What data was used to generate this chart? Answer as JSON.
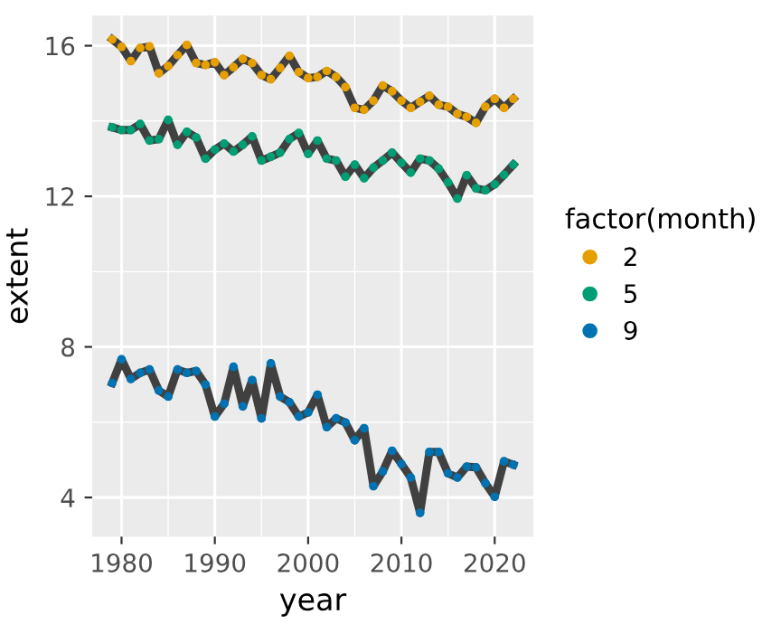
{
  "chart_data": {
    "type": "line",
    "xlabel": "year",
    "ylabel": "extent",
    "legend_title": "factor(month)",
    "x": [
      1979,
      1980,
      1981,
      1982,
      1983,
      1984,
      1985,
      1986,
      1987,
      1988,
      1989,
      1990,
      1991,
      1992,
      1993,
      1994,
      1995,
      1996,
      1997,
      1998,
      1999,
      2000,
      2001,
      2002,
      2003,
      2004,
      2005,
      2006,
      2007,
      2008,
      2009,
      2010,
      2011,
      2012,
      2013,
      2014,
      2015,
      2016,
      2017,
      2018,
      2019,
      2020,
      2021,
      2022
    ],
    "series": [
      {
        "name": "2",
        "color": "#e69f00",
        "values": [
          16.17,
          15.97,
          15.59,
          15.94,
          15.98,
          15.27,
          15.46,
          15.75,
          16.02,
          15.54,
          15.49,
          15.56,
          15.22,
          15.43,
          15.65,
          15.54,
          15.22,
          15.11,
          15.41,
          15.73,
          15.3,
          15.14,
          15.17,
          15.33,
          15.17,
          14.9,
          14.35,
          14.3,
          14.54,
          14.94,
          14.79,
          14.54,
          14.35,
          14.51,
          14.67,
          14.43,
          14.38,
          14.19,
          14.11,
          13.95,
          14.38,
          14.59,
          14.35,
          14.59
        ]
      },
      {
        "name": "5",
        "color": "#009e73",
        "values": [
          13.83,
          13.76,
          13.76,
          13.92,
          13.48,
          13.52,
          14.03,
          13.37,
          13.71,
          13.56,
          13.0,
          13.24,
          13.4,
          13.19,
          13.37,
          13.59,
          12.95,
          13.05,
          13.16,
          13.52,
          13.68,
          13.13,
          13.48,
          13.0,
          12.95,
          12.52,
          12.84,
          12.48,
          12.76,
          12.95,
          13.16,
          12.89,
          12.63,
          13.0,
          12.95,
          12.73,
          12.37,
          11.94,
          12.56,
          12.21,
          12.16,
          12.32,
          12.57,
          12.84
        ]
      },
      {
        "name": "9",
        "color": "#0072b2",
        "values": [
          7.04,
          7.67,
          7.15,
          7.31,
          7.4,
          6.84,
          6.68,
          7.4,
          7.31,
          7.36,
          7.0,
          6.15,
          6.49,
          7.47,
          6.42,
          7.12,
          6.1,
          7.56,
          6.68,
          6.53,
          6.15,
          6.26,
          6.73,
          5.87,
          6.1,
          5.99,
          5.52,
          5.84,
          4.3,
          4.69,
          5.24,
          4.89,
          4.53,
          3.59,
          5.21,
          5.21,
          4.64,
          4.53,
          4.82,
          4.8,
          4.38,
          4.02,
          4.96,
          4.87
        ]
      }
    ],
    "xlim": [
      1976.85,
      2024.15
    ],
    "xticks": [
      1980,
      1990,
      2000,
      2010,
      2020
    ],
    "ylim": [
      2.96,
      16.8
    ],
    "yticks": [
      4,
      8,
      12,
      16
    ],
    "grid": true,
    "legend": "right",
    "marker": "circle",
    "line_style": "solid"
  }
}
